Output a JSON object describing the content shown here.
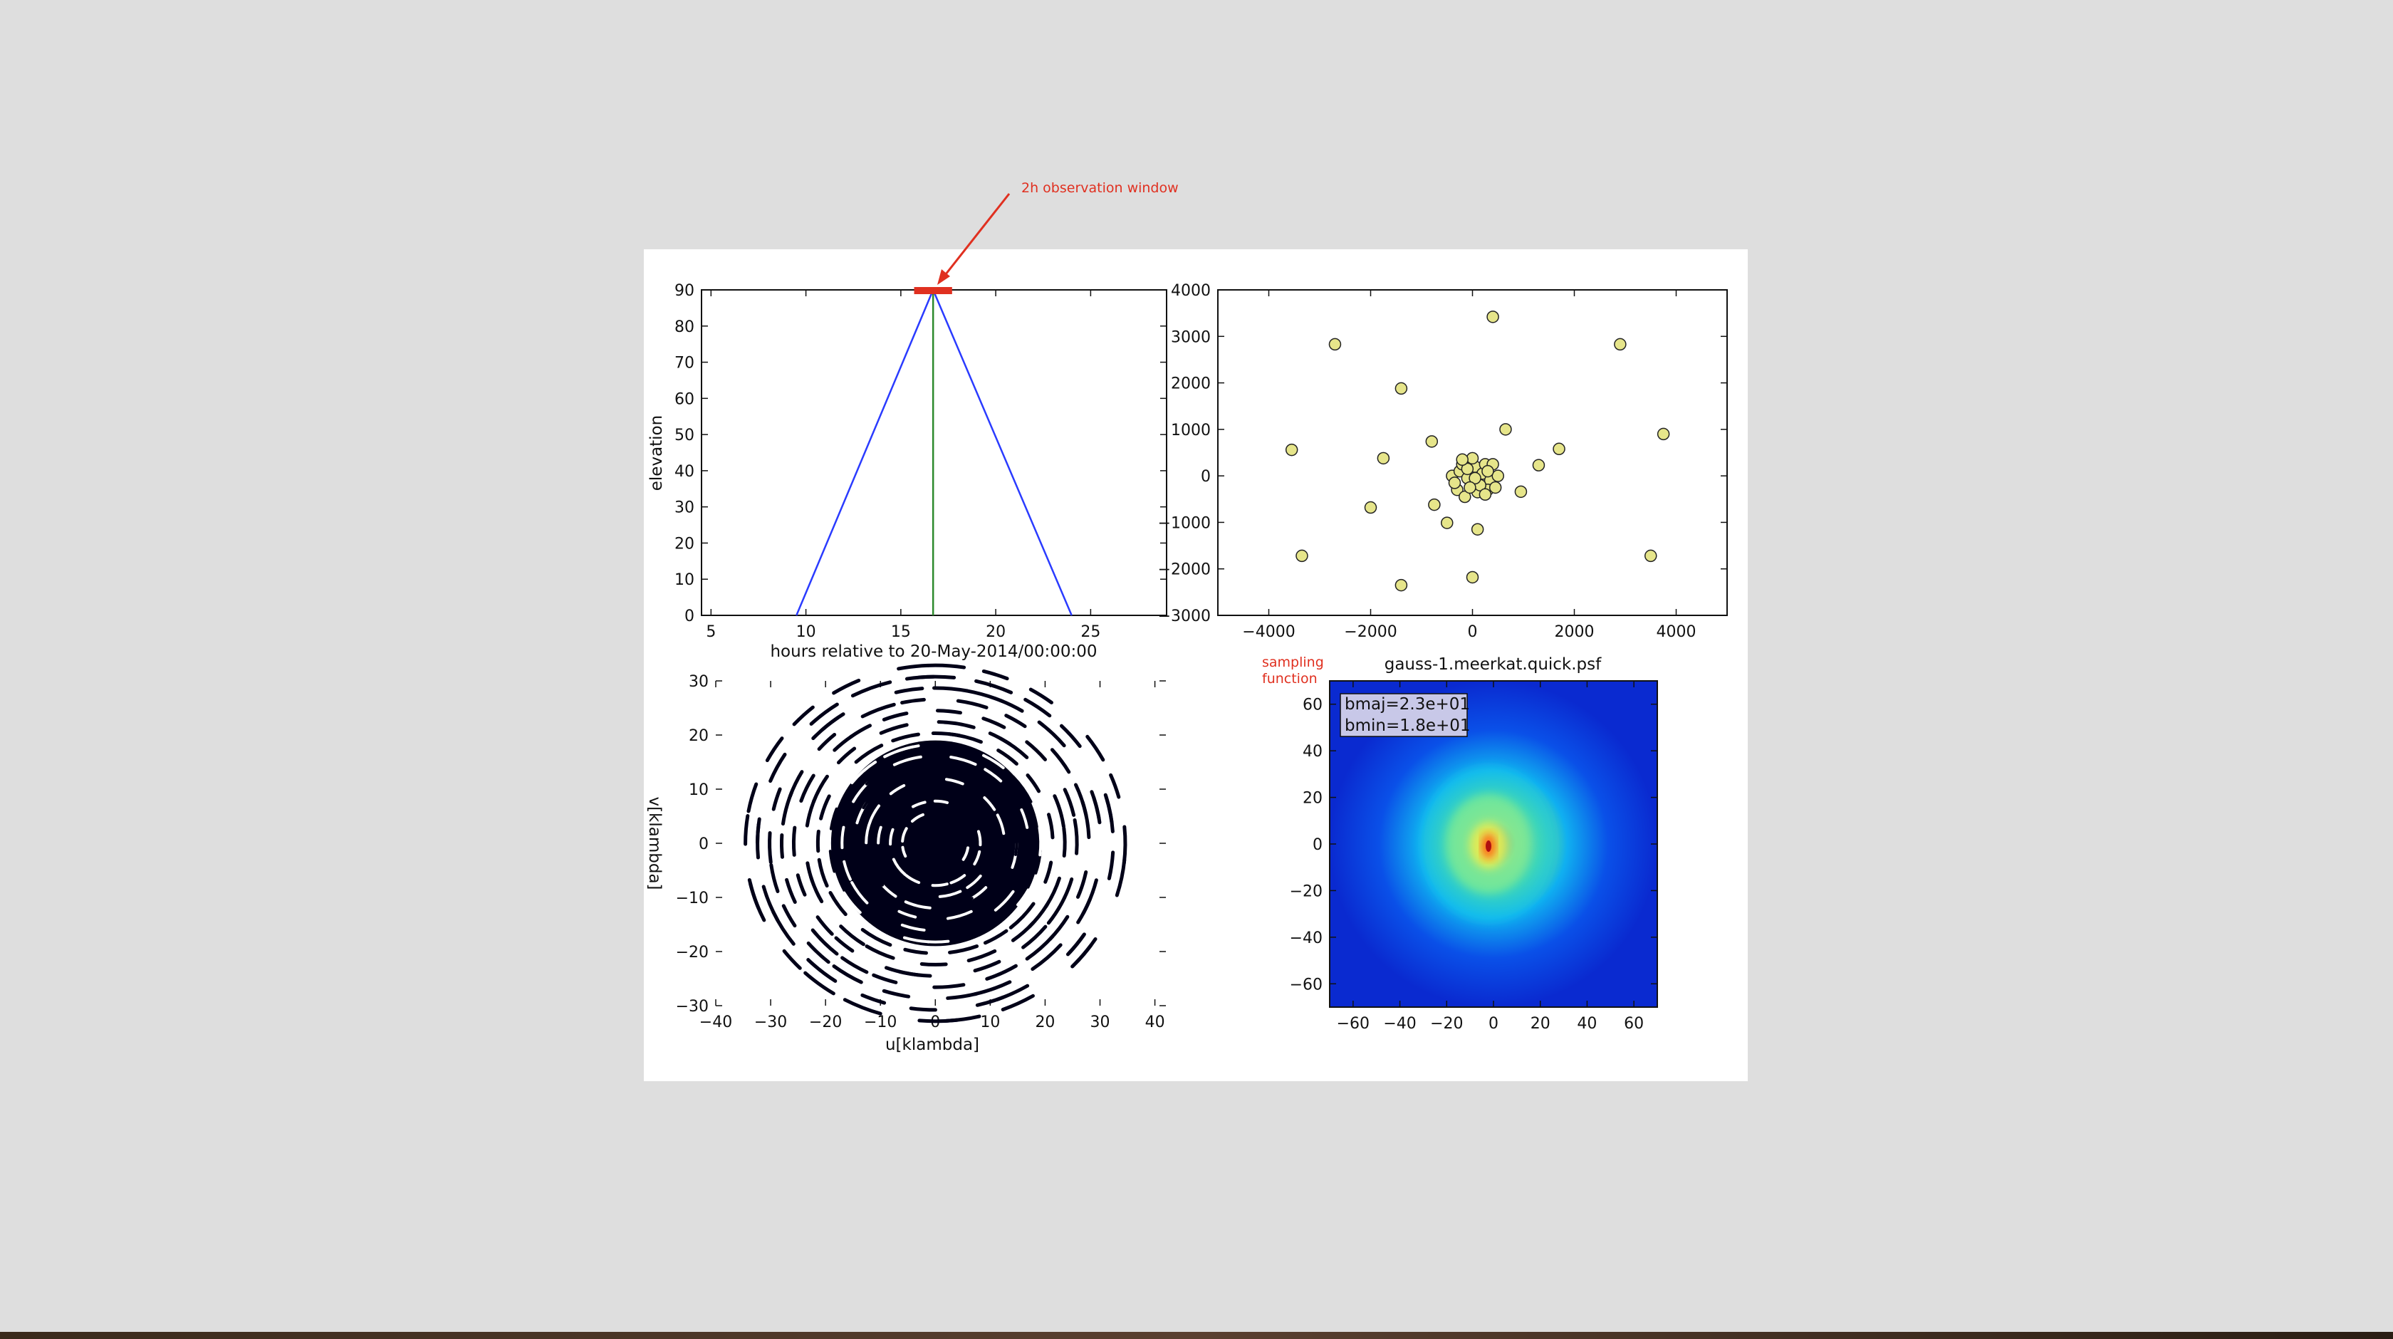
{
  "annotations": {
    "obs_window": "2h observation window",
    "sampling_function": [
      "sampling",
      "function"
    ]
  },
  "colors": {
    "background": "#dedede",
    "panel": "#ffffff",
    "elevation_line": "#2a3bff",
    "transit_line": "#2d8a2d",
    "window_bar": "#e03020",
    "antenna_fill": "#e6e58a",
    "uv_tracks": "#000018"
  },
  "chart_data": [
    {
      "id": "elevation",
      "type": "line",
      "xlabel": "hours relative to 20-May-2014/00:00:00",
      "ylabel": "elevation",
      "xlim": [
        4.5,
        29
      ],
      "ylim": [
        0,
        90
      ],
      "xticks": [
        5,
        10,
        15,
        20,
        25
      ],
      "yticks": [
        0,
        10,
        20,
        30,
        40,
        50,
        60,
        70,
        80,
        90
      ],
      "series": [
        {
          "x": [
            9.5,
            16.7,
            24.0
          ],
          "y": [
            0,
            90,
            0
          ]
        }
      ],
      "transit_hour": 16.7,
      "window_hours": [
        15.7,
        17.7
      ]
    },
    {
      "id": "antenna-layout",
      "type": "scatter",
      "xlim": [
        -5000,
        5000
      ],
      "ylim": [
        -3000,
        4000
      ],
      "xticks": [
        -4000,
        -2000,
        0,
        2000,
        4000
      ],
      "yticks": [
        -3000,
        -2000,
        -1000,
        0,
        1000,
        2000,
        3000,
        4000
      ],
      "points": [
        [
          -2700,
          2830
        ],
        [
          400,
          3420
        ],
        [
          2900,
          2830
        ],
        [
          -1400,
          1880
        ],
        [
          650,
          1000
        ],
        [
          -3550,
          560
        ],
        [
          -800,
          740
        ],
        [
          1700,
          580
        ],
        [
          3750,
          900
        ],
        [
          -1750,
          380
        ],
        [
          1300,
          230
        ],
        [
          -2000,
          -680
        ],
        [
          950,
          -340
        ],
        [
          -750,
          -620
        ],
        [
          -500,
          -1010
        ],
        [
          100,
          -1150
        ],
        [
          -3350,
          -1720
        ],
        [
          3500,
          -1720
        ],
        [
          0,
          -2180
        ],
        [
          -1400,
          -2350
        ],
        [
          -400,
          0
        ],
        [
          -250,
          100
        ],
        [
          -100,
          -50
        ],
        [
          50,
          200
        ],
        [
          200,
          50
        ],
        [
          350,
          -100
        ],
        [
          -300,
          -300
        ],
        [
          -150,
          -450
        ],
        [
          100,
          -350
        ],
        [
          300,
          -300
        ],
        [
          500,
          0
        ],
        [
          -200,
          250
        ],
        [
          0,
          380
        ],
        [
          250,
          250
        ],
        [
          150,
          -200
        ],
        [
          -100,
          150
        ],
        [
          400,
          250
        ],
        [
          -350,
          -150
        ],
        [
          50,
          -50
        ],
        [
          250,
          -400
        ],
        [
          -50,
          -250
        ],
        [
          450,
          -250
        ],
        [
          -200,
          350
        ],
        [
          300,
          100
        ]
      ]
    },
    {
      "id": "uv-coverage",
      "type": "scatter",
      "xlabel": "u[klambda]",
      "ylabel": "v[klambda]",
      "xlim": [
        -40,
        42
      ],
      "ylim": [
        -30,
        30
      ],
      "xticks": [
        -40,
        -30,
        -20,
        -10,
        0,
        10,
        20,
        30,
        40
      ],
      "yticks": [
        -30,
        -20,
        -10,
        0,
        10,
        20,
        30
      ],
      "note": "dense elliptical uv tracks"
    },
    {
      "id": "psf",
      "type": "heatmap",
      "title": "gauss-1.meerkat.quick.psf",
      "xlim": [
        -70,
        70
      ],
      "ylim": [
        -70,
        70
      ],
      "xticks": [
        -60,
        -40,
        -20,
        0,
        20,
        40,
        60
      ],
      "yticks": [
        -60,
        -40,
        -20,
        0,
        20,
        40,
        60
      ],
      "legend": [
        "bmaj=2.3e+01",
        "bmin=1.8e+01"
      ]
    }
  ]
}
